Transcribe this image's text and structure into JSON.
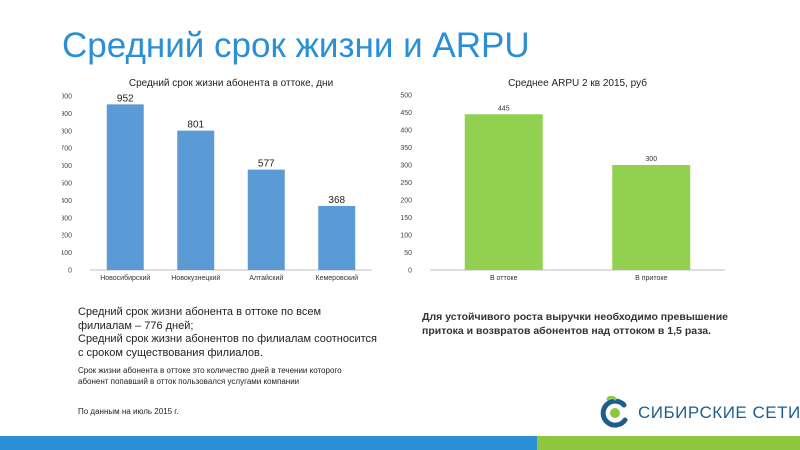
{
  "page": {
    "title": "Средний срок жизни и ARPU"
  },
  "chart_data": [
    {
      "type": "bar",
      "title": "Средний срок жизни абонента в оттоке, дни",
      "categories": [
        "Новосибирский",
        "Новокузнецкий",
        "Алтайский",
        "Кемеровский"
      ],
      "values": [
        952,
        801,
        577,
        368
      ],
      "ylim": [
        0,
        1000
      ],
      "yticks": [
        0,
        100,
        200,
        300,
        400,
        500,
        600,
        700,
        800,
        900,
        1000
      ],
      "color": "#5b9bd5",
      "grid": false
    },
    {
      "type": "bar",
      "title": "Среднее ARPU 2 кв 2015, руб",
      "categories": [
        "В оттоке",
        "В притоке"
      ],
      "values": [
        445,
        300
      ],
      "ylim": [
        0,
        500
      ],
      "yticks": [
        0,
        50,
        100,
        150,
        200,
        250,
        300,
        350,
        400,
        450,
        500
      ],
      "color": "#92d050",
      "grid": false
    }
  ],
  "notes": {
    "left_main": "Средний срок жизни абонента в оттоке по всем филиалам – 776 дней;\nСредний срок жизни абонентов по филиалам соотносится с сроком существования филиалов.",
    "left_def": "Срок жизни абонента в оттоке это количество дней в течении которого абонент попавший в отток пользовался услугами компании",
    "left_source": "По данным на июль 2015 г.",
    "right_main": "Для устойчивого роста выручки необходимо превышение притока и возвратов абонентов над оттоком в 1,5 раза."
  },
  "logo": {
    "text": "СИБИРСКИЕ СЕТИ",
    "colors": {
      "blue": "#1d5e8f",
      "green": "#8dc63f"
    }
  },
  "colors": {
    "title": "#2b8fd6",
    "bar_blue": "#2b8fd6",
    "bar_green": "#8dc63f"
  }
}
